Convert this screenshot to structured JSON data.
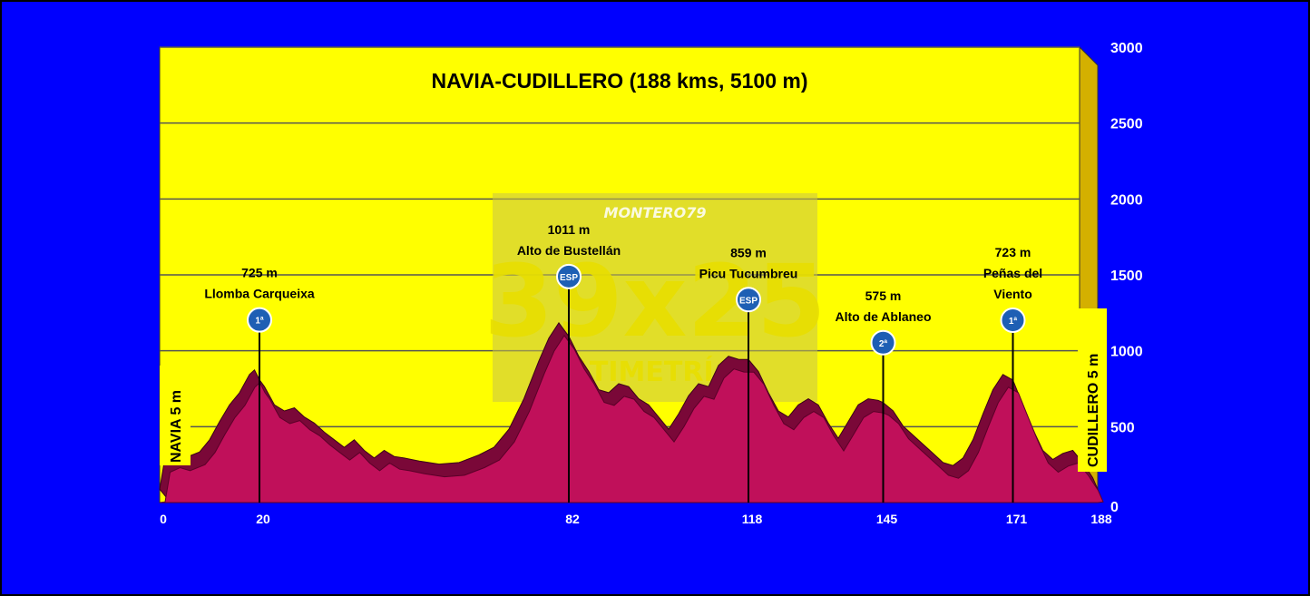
{
  "chart_data": {
    "type": "area",
    "title": "NAVIA-CUDILLERO (188 kms, 5100 m)",
    "x_ticks": [
      0,
      20,
      82,
      118,
      145,
      171,
      188
    ],
    "y_ticks": [
      0,
      500,
      1000,
      1500,
      2000,
      2500,
      3000
    ],
    "xlim": [
      0,
      188
    ],
    "ylim": [
      0,
      3000
    ],
    "start_label": "NAVIA 5 m",
    "end_label": "CUDILLERO 5 m",
    "colors": {
      "background": "#0000fe",
      "plot": "#ffff00",
      "profile": "#c0105a",
      "profile_dark": "#7a0838",
      "wall": "#d4b000"
    },
    "profile": [
      [
        0,
        5
      ],
      [
        1,
        200
      ],
      [
        3,
        230
      ],
      [
        5,
        210
      ],
      [
        8,
        250
      ],
      [
        10,
        330
      ],
      [
        12,
        450
      ],
      [
        14,
        560
      ],
      [
        16,
        640
      ],
      [
        18,
        760
      ],
      [
        19,
        790
      ],
      [
        20,
        725
      ],
      [
        21,
        680
      ],
      [
        23,
        560
      ],
      [
        25,
        520
      ],
      [
        27,
        540
      ],
      [
        29,
        480
      ],
      [
        31,
        440
      ],
      [
        33,
        380
      ],
      [
        35,
        330
      ],
      [
        37,
        280
      ],
      [
        39,
        330
      ],
      [
        41,
        260
      ],
      [
        43,
        210
      ],
      [
        45,
        260
      ],
      [
        47,
        220
      ],
      [
        49,
        210
      ],
      [
        52,
        190
      ],
      [
        56,
        170
      ],
      [
        60,
        180
      ],
      [
        64,
        230
      ],
      [
        67,
        280
      ],
      [
        70,
        400
      ],
      [
        73,
        600
      ],
      [
        76,
        850
      ],
      [
        78,
        1000
      ],
      [
        80,
        1100
      ],
      [
        82,
        1011
      ],
      [
        84,
        880
      ],
      [
        86,
        780
      ],
      [
        88,
        660
      ],
      [
        90,
        640
      ],
      [
        92,
        700
      ],
      [
        94,
        680
      ],
      [
        96,
        600
      ],
      [
        98,
        560
      ],
      [
        100,
        480
      ],
      [
        102,
        400
      ],
      [
        104,
        500
      ],
      [
        106,
        620
      ],
      [
        108,
        700
      ],
      [
        110,
        680
      ],
      [
        112,
        820
      ],
      [
        114,
        880
      ],
      [
        116,
        860
      ],
      [
        118,
        859
      ],
      [
        120,
        780
      ],
      [
        122,
        640
      ],
      [
        124,
        520
      ],
      [
        126,
        480
      ],
      [
        128,
        560
      ],
      [
        130,
        600
      ],
      [
        132,
        560
      ],
      [
        134,
        440
      ],
      [
        136,
        340
      ],
      [
        138,
        450
      ],
      [
        140,
        560
      ],
      [
        142,
        600
      ],
      [
        144,
        590
      ],
      [
        145,
        575
      ],
      [
        147,
        520
      ],
      [
        149,
        420
      ],
      [
        151,
        360
      ],
      [
        153,
        300
      ],
      [
        155,
        240
      ],
      [
        157,
        180
      ],
      [
        159,
        160
      ],
      [
        161,
        210
      ],
      [
        163,
        330
      ],
      [
        165,
        500
      ],
      [
        167,
        660
      ],
      [
        169,
        760
      ],
      [
        171,
        723
      ],
      [
        173,
        560
      ],
      [
        175,
        400
      ],
      [
        177,
        260
      ],
      [
        179,
        200
      ],
      [
        181,
        240
      ],
      [
        183,
        260
      ],
      [
        185,
        180
      ],
      [
        187,
        80
      ],
      [
        188,
        5
      ]
    ],
    "climbs": [
      {
        "km": 20,
        "alt": 725,
        "altitude_label": "725 m",
        "name_lines": [
          "Llomba Carqueixa"
        ],
        "category": "1ª"
      },
      {
        "km": 82,
        "alt": 1011,
        "altitude_label": "1011 m",
        "name_lines": [
          "Alto de Bustellán"
        ],
        "category": "ESP"
      },
      {
        "km": 118,
        "alt": 859,
        "altitude_label": "859 m",
        "name_lines": [
          "Picu Tucumbreu"
        ],
        "category": "ESP"
      },
      {
        "km": 145,
        "alt": 575,
        "altitude_label": "575 m",
        "name_lines": [
          "Alto de Ablaneo"
        ],
        "category": "2ª"
      },
      {
        "km": 171,
        "alt": 723,
        "altitude_label": "723 m",
        "name_lines": [
          "Peñas del",
          "Viento"
        ],
        "category": "1ª"
      }
    ]
  },
  "watermark": {
    "author": "MONTERO79",
    "brand": "39x25",
    "subtitle": "ALTIMETRÍAS"
  }
}
